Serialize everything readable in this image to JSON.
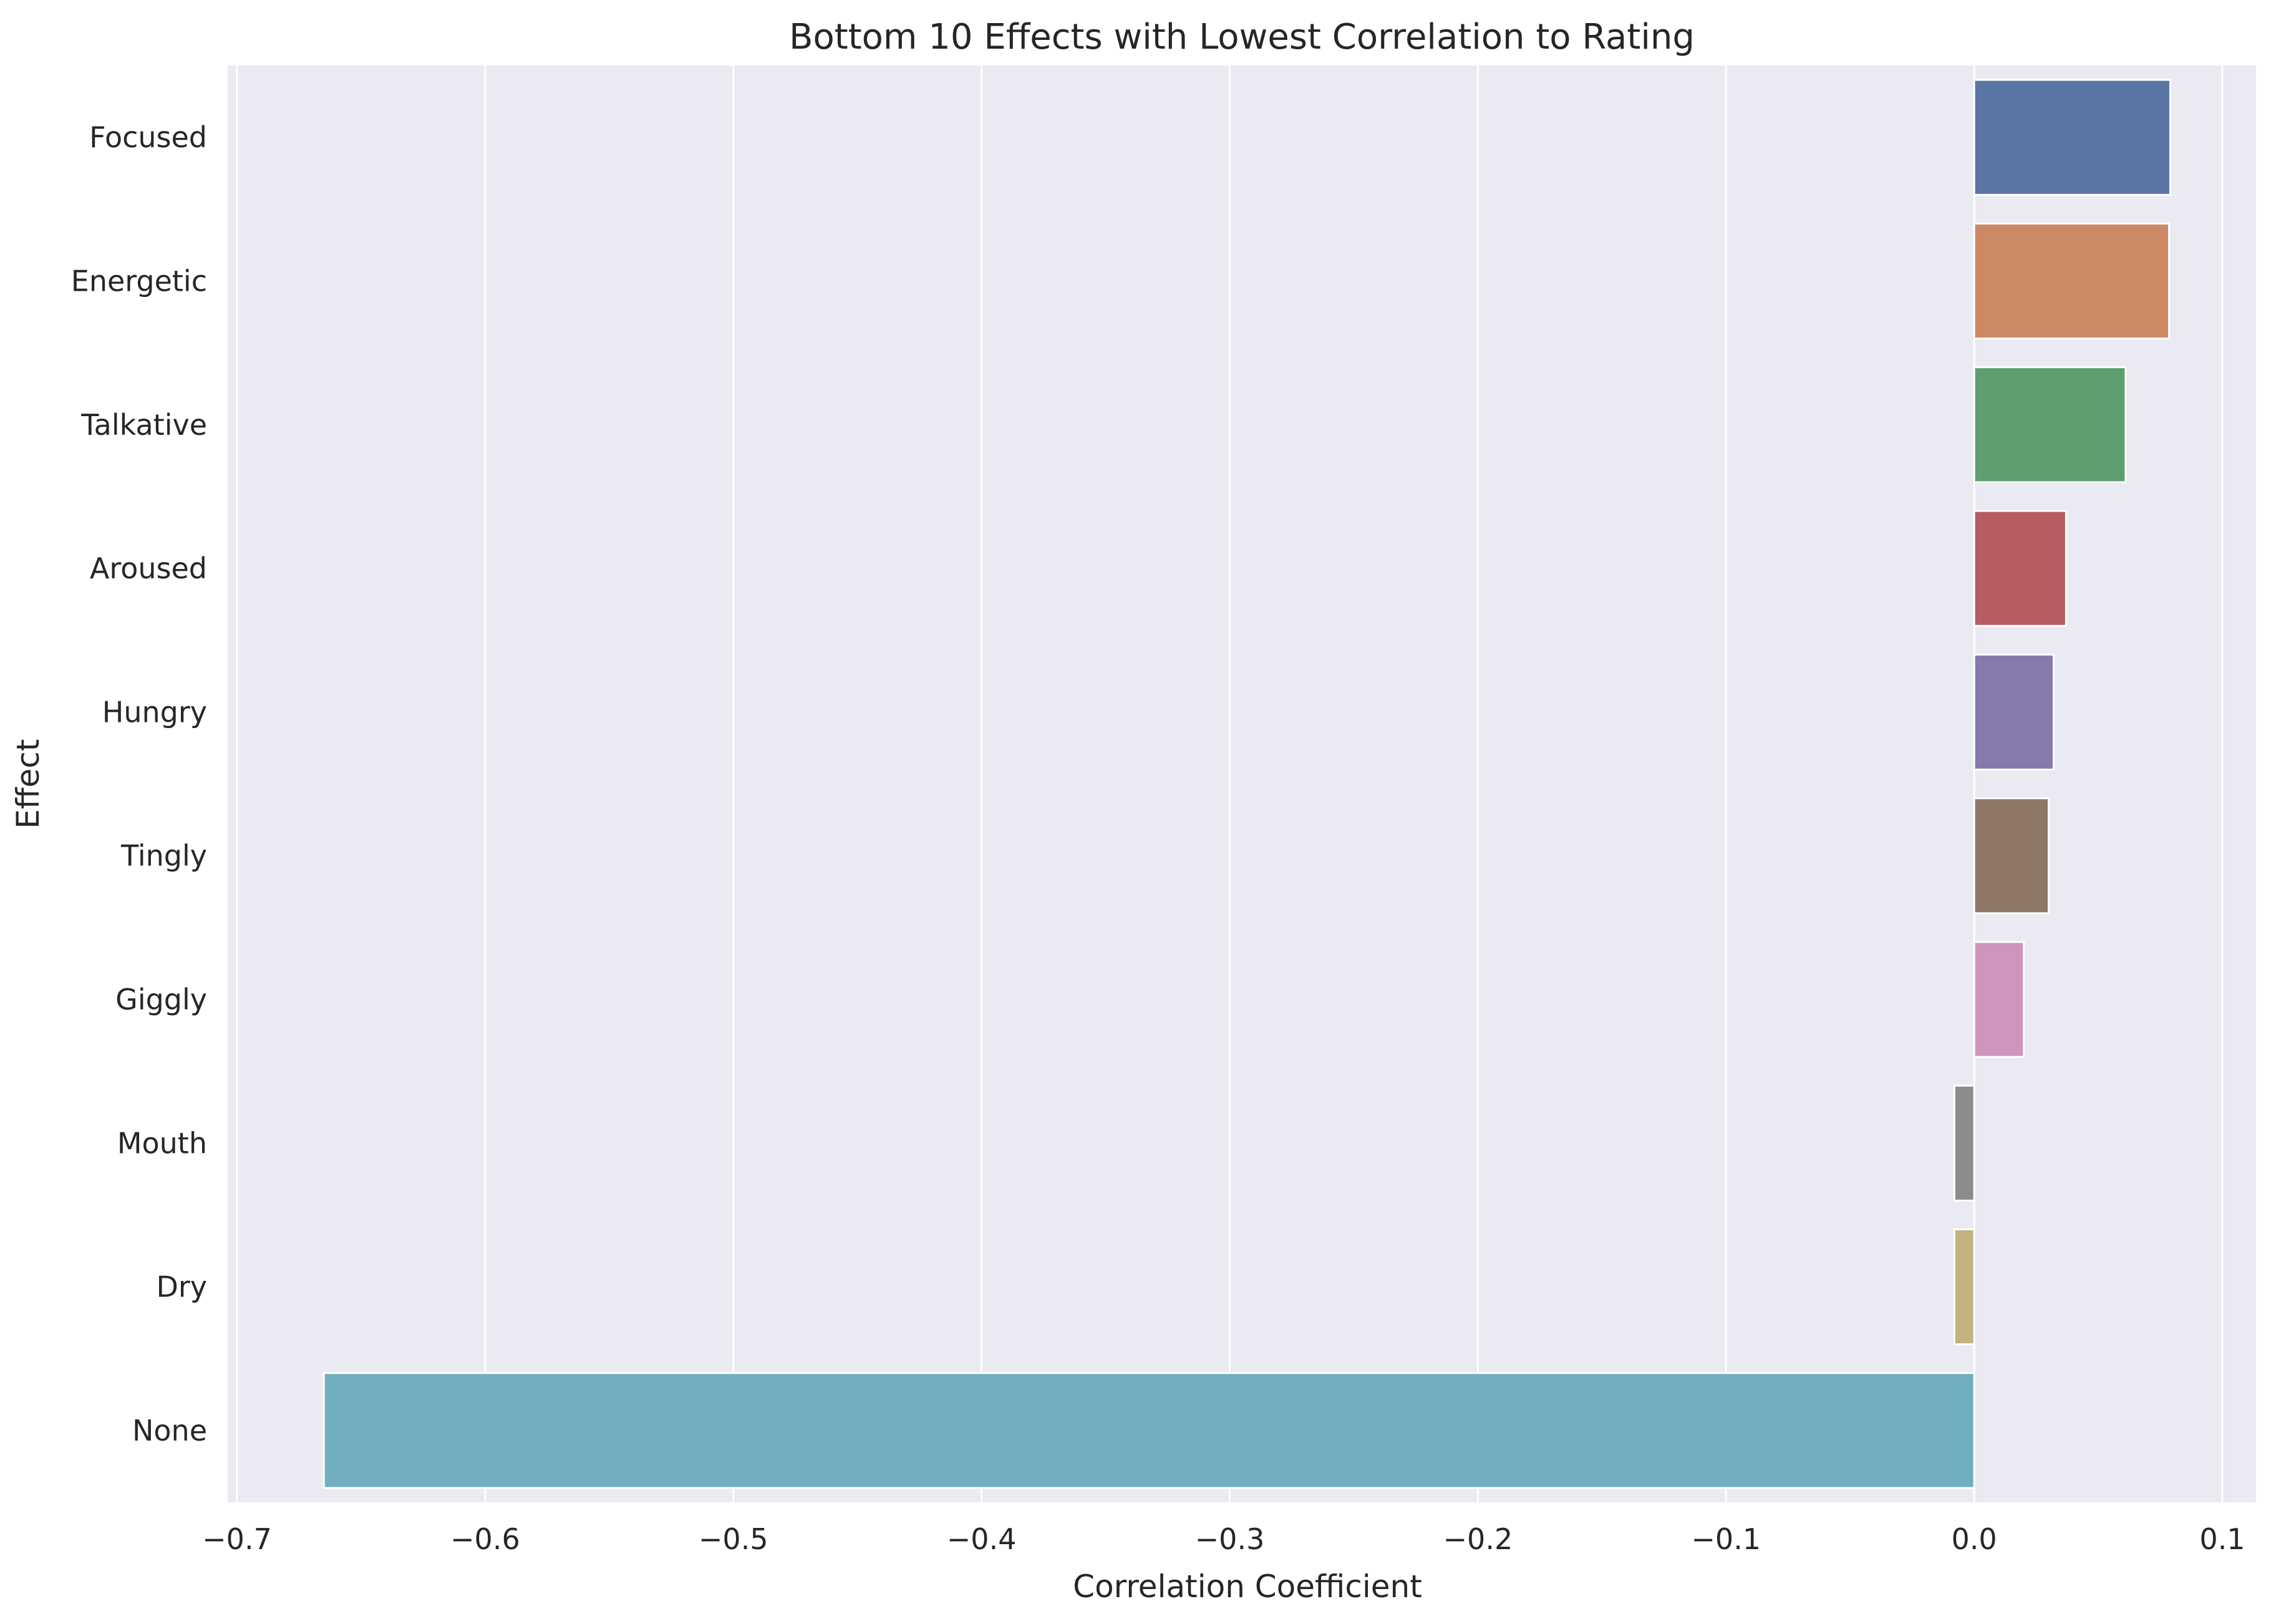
{
  "chart_data": {
    "type": "bar",
    "orientation": "horizontal",
    "title": "Bottom 10 Effects with Lowest Correlation to Rating",
    "xlabel": "Correlation Coefficient",
    "ylabel": "Effect",
    "xlim": [
      -0.7,
      0.1
    ],
    "x_ticks": [
      -0.7,
      -0.6,
      -0.5,
      -0.4,
      -0.3,
      -0.2,
      -0.1,
      0.0,
      0.1
    ],
    "x_tick_labels": [
      "−0.7",
      "−0.6",
      "−0.5",
      "−0.4",
      "−0.3",
      "−0.2",
      "−0.1",
      "0.0",
      "0.1"
    ],
    "grid": true,
    "categories": [
      "Focused",
      "Energetic",
      "Talkative",
      "Aroused",
      "Hungry",
      "Tingly",
      "Giggly",
      "Mouth",
      "Dry",
      "None"
    ],
    "values": [
      0.079,
      0.0785,
      0.061,
      0.037,
      0.032,
      0.03,
      0.02,
      -0.008,
      -0.008,
      -0.665
    ],
    "colors": [
      "#5975a4",
      "#cc8963",
      "#5f9e6e",
      "#b55d60",
      "#857aab",
      "#8d7866",
      "#d095bf",
      "#8c8c8c",
      "#c1b37f",
      "#71aec0"
    ]
  },
  "theme": {
    "plot_bg": "#eaeaf2",
    "grid_color": "#ffffff",
    "text_color": "#262626"
  }
}
